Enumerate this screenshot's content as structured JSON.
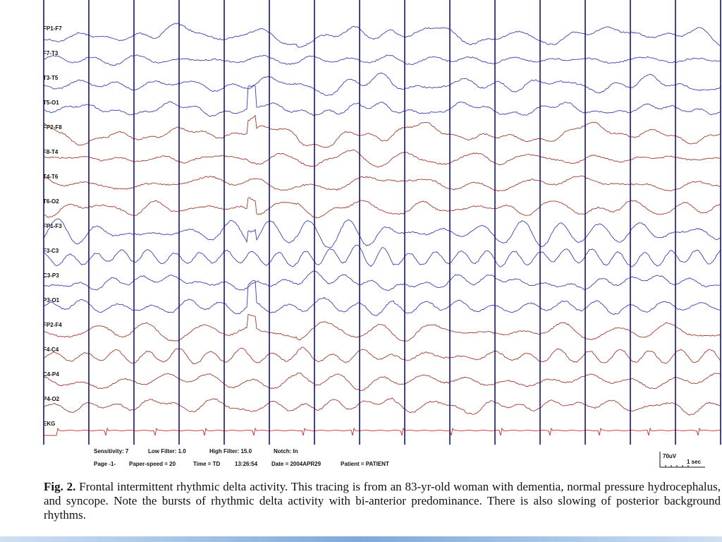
{
  "figure": {
    "channels": [
      "FP1-F7",
      "F7-T3",
      "T3-T5",
      "T5-O1",
      "FP2-F8",
      "F8-T4",
      "T4-T6",
      "T6-O2",
      "FP1-F3",
      "F3-C3",
      "C3-P3",
      "P3-O1",
      "FP2-F4",
      "F4-C4",
      "C4-P4",
      "P4-O2",
      "EKG"
    ],
    "settings": [
      "Sensitivity: 7",
      "Low Filter: 1.0",
      "High Filter: 15.0",
      "Notch: In"
    ],
    "info": [
      "Page -1-",
      "Paper-speed = 20",
      "Time = TD",
      "13:26:54",
      "Date = 2004APR29",
      "Patient = PATIENT"
    ],
    "scale": {
      "amplitude": "70uV",
      "time": "1 sec"
    }
  },
  "caption": {
    "label": "Fig. 2.",
    "text": "Frontal intermittent rhythmic delta activity. This tracing is from an 83-yr-old woman with dementia, normal pressure hydrocephalus, and syncope. Note the bursts of rhythmic delta activity with bi-anterior predominance. There is also slowing of posterior background rhythms."
  }
}
